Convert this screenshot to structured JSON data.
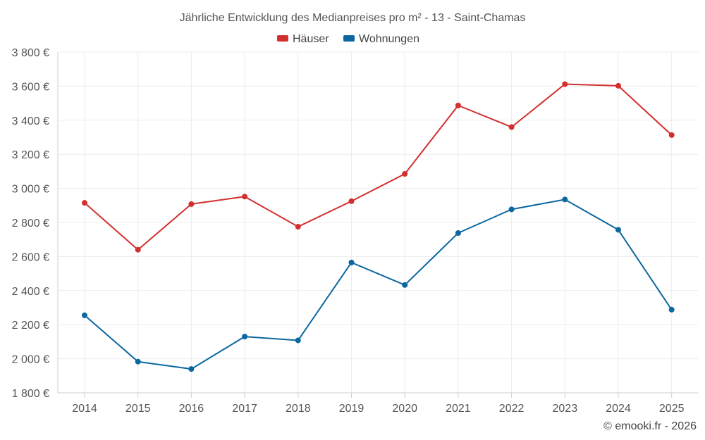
{
  "chart_data": {
    "type": "line",
    "title": "Jährliche Entwicklung des Medianpreises pro m² - 13 - Saint-Chamas",
    "categories": [
      "2014",
      "2015",
      "2016",
      "2017",
      "2018",
      "2019",
      "2020",
      "2021",
      "2022",
      "2023",
      "2024",
      "2025"
    ],
    "ylim": [
      1800,
      3800
    ],
    "yticks": [
      1800,
      2000,
      2200,
      2400,
      2600,
      2800,
      3000,
      3200,
      3400,
      3600,
      3800
    ],
    "ytick_labels": [
      "1 800 €",
      "2 000 €",
      "2 200 €",
      "2 400 €",
      "2 600 €",
      "2 800 €",
      "3 000 €",
      "3 200 €",
      "3 400 €",
      "3 600 €",
      "3 800 €"
    ],
    "xlabel": "",
    "ylabel": "",
    "grid": true,
    "legend_position": "top-center",
    "series": [
      {
        "name": "Häuser",
        "color": "#d32f2f",
        "values": [
          2915,
          2640,
          2908,
          2952,
          2775,
          2925,
          3085,
          3487,
          3360,
          3612,
          3602,
          3313
        ]
      },
      {
        "name": "Wohnungen",
        "color": "#0b67a0",
        "values": [
          2255,
          1983,
          1940,
          2130,
          2108,
          2565,
          2433,
          2738,
          2877,
          2935,
          2757,
          2288
        ]
      }
    ]
  },
  "credit": "© emooki.fr - 2026"
}
